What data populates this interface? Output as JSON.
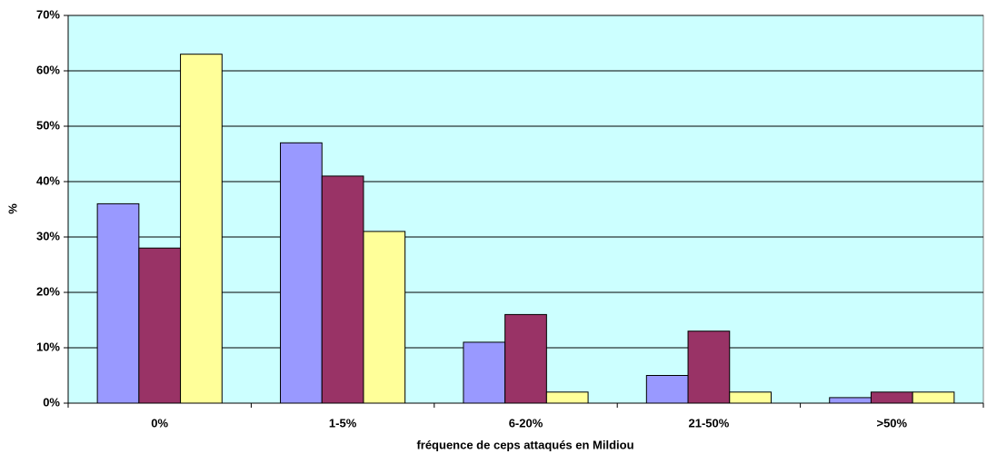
{
  "chart_data": {
    "type": "bar",
    "x_label": "fréquence de ceps attaqués en Mildiou",
    "y_label": "%",
    "categories": [
      "0%",
      "1-5%",
      "6-20%",
      "21-50%",
      ">50%"
    ],
    "series": [
      {
        "color": "#9999ff",
        "values": [
          36,
          47,
          11,
          5,
          1
        ]
      },
      {
        "color": "#993366",
        "values": [
          28,
          41,
          16,
          13,
          2
        ]
      },
      {
        "color": "#ffff99",
        "values": [
          63,
          31,
          2,
          2,
          2
        ]
      }
    ],
    "ylim": [
      0,
      70
    ],
    "yticks": [
      {
        "value": 0,
        "label": "0%"
      },
      {
        "value": 10,
        "label": "10%"
      },
      {
        "value": 20,
        "label": "20%"
      },
      {
        "value": 30,
        "label": "30%"
      },
      {
        "value": 40,
        "label": "40%"
      },
      {
        "value": 50,
        "label": "50%"
      },
      {
        "value": 60,
        "label": "60%"
      },
      {
        "value": 70,
        "label": "70%"
      }
    ],
    "grid": true,
    "plot_background": "#ccffff"
  }
}
